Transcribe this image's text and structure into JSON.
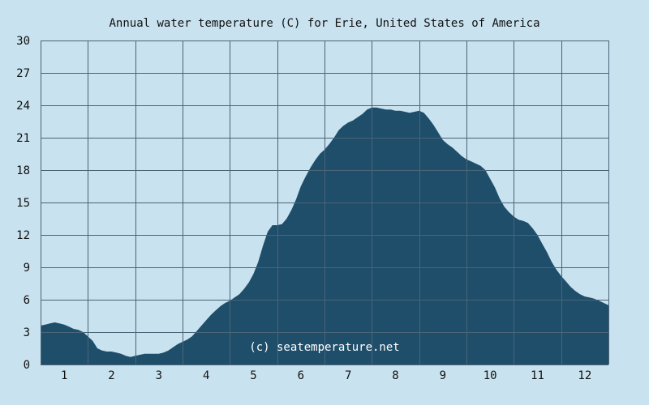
{
  "chart_data": {
    "type": "area",
    "title": "Annual water temperature (C) for Erie, United States of America",
    "xlabel": "",
    "ylabel": "",
    "x_ticks": [
      "1",
      "2",
      "3",
      "4",
      "5",
      "6",
      "7",
      "8",
      "9",
      "10",
      "11",
      "12"
    ],
    "y_ticks": [
      "0",
      "3",
      "6",
      "9",
      "12",
      "15",
      "18",
      "21",
      "24",
      "27",
      "30"
    ],
    "xlim": [
      0.5,
      12.5
    ],
    "ylim": [
      0,
      30
    ],
    "grid": true,
    "watermark": "(c) seatemperature.net",
    "colors": {
      "area": "#1f4e6a",
      "background": "#c9e2ef",
      "grid": "#4a6478"
    },
    "x": [
      0.5,
      0.6,
      0.7,
      0.8,
      0.9,
      1.0,
      1.1,
      1.2,
      1.3,
      1.4,
      1.5,
      1.6,
      1.7,
      1.8,
      1.9,
      2.0,
      2.1,
      2.2,
      2.3,
      2.4,
      2.5,
      2.6,
      2.7,
      2.8,
      2.9,
      3.0,
      3.1,
      3.2,
      3.3,
      3.4,
      3.5,
      3.6,
      3.7,
      3.8,
      3.9,
      4.0,
      4.1,
      4.2,
      4.3,
      4.4,
      4.5,
      4.6,
      4.7,
      4.8,
      4.9,
      5.0,
      5.1,
      5.2,
      5.3,
      5.4,
      5.5,
      5.6,
      5.7,
      5.8,
      5.9,
      6.0,
      6.1,
      6.2,
      6.3,
      6.4,
      6.5,
      6.6,
      6.7,
      6.8,
      6.9,
      7.0,
      7.1,
      7.2,
      7.3,
      7.4,
      7.5,
      7.6,
      7.7,
      7.8,
      7.9,
      8.0,
      8.1,
      8.2,
      8.3,
      8.4,
      8.5,
      8.6,
      8.7,
      8.8,
      8.9,
      9.0,
      9.1,
      9.2,
      9.3,
      9.4,
      9.5,
      9.6,
      9.7,
      9.8,
      9.9,
      10.0,
      10.1,
      10.2,
      10.3,
      10.4,
      10.5,
      10.6,
      10.7,
      10.8,
      10.9,
      11.0,
      11.1,
      11.2,
      11.3,
      11.4,
      11.5,
      11.6,
      11.7,
      11.8,
      11.9,
      12.0,
      12.1,
      12.2,
      12.3,
      12.4,
      12.5
    ],
    "y": [
      3.6,
      3.7,
      3.8,
      3.9,
      3.8,
      3.7,
      3.5,
      3.3,
      3.2,
      3.0,
      2.6,
      2.2,
      1.5,
      1.3,
      1.2,
      1.2,
      1.1,
      1.0,
      0.8,
      0.7,
      0.8,
      0.9,
      1.0,
      1.0,
      1.0,
      1.0,
      1.1,
      1.3,
      1.6,
      1.9,
      2.1,
      2.3,
      2.6,
      3.1,
      3.6,
      4.1,
      4.6,
      5.0,
      5.4,
      5.7,
      5.9,
      6.2,
      6.5,
      7.0,
      7.6,
      8.4,
      9.5,
      11.0,
      12.3,
      12.9,
      12.9,
      13.0,
      13.5,
      14.3,
      15.3,
      16.5,
      17.4,
      18.2,
      18.9,
      19.5,
      19.9,
      20.4,
      21.0,
      21.7,
      22.1,
      22.4,
      22.6,
      22.9,
      23.2,
      23.6,
      23.8,
      23.8,
      23.7,
      23.6,
      23.6,
      23.5,
      23.5,
      23.4,
      23.3,
      23.4,
      23.5,
      23.3,
      22.8,
      22.2,
      21.5,
      20.8,
      20.4,
      20.1,
      19.7,
      19.3,
      19.0,
      18.8,
      18.6,
      18.4,
      18.0,
      17.2,
      16.4,
      15.4,
      14.6,
      14.1,
      13.7,
      13.4,
      13.3,
      13.1,
      12.6,
      12.0,
      11.2,
      10.4,
      9.5,
      8.8,
      8.2,
      7.7,
      7.2,
      6.8,
      6.5,
      6.3,
      6.2,
      6.1,
      5.9,
      5.7,
      5.5
    ]
  }
}
